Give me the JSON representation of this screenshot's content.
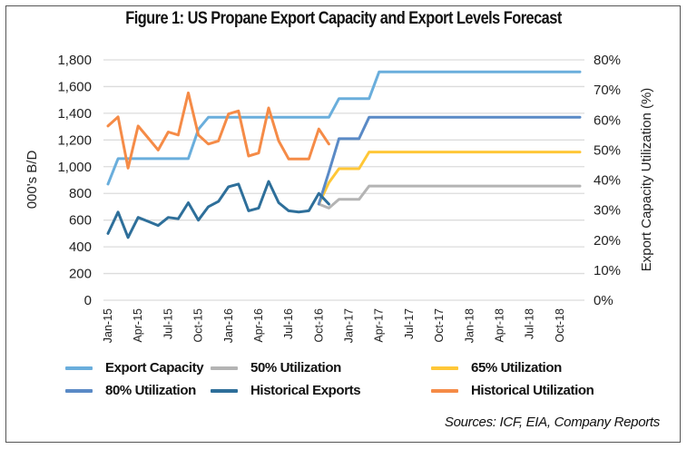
{
  "chart_data": {
    "type": "line",
    "title": "Figure 1: US Propane Export Capacity and Export Levels Forecast",
    "ylabel": "000's B/D",
    "y2label": "Export Capacity Utilization (%)",
    "ylim": [
      0,
      1800
    ],
    "y2lim": [
      0,
      0.8
    ],
    "yticks": [
      "0",
      "200",
      "400",
      "600",
      "800",
      "1,000",
      "1,200",
      "1,400",
      "1,600",
      "1,800"
    ],
    "y2ticks": [
      "0%",
      "10%",
      "20%",
      "30%",
      "40%",
      "50%",
      "60%",
      "70%",
      "80%"
    ],
    "grid": true,
    "legend_position": "bottom",
    "x": [
      "Jan-15",
      "Feb-15",
      "Mar-15",
      "Apr-15",
      "May-15",
      "Jun-15",
      "Jul-15",
      "Aug-15",
      "Sep-15",
      "Oct-15",
      "Nov-15",
      "Dec-15",
      "Jan-16",
      "Feb-16",
      "Mar-16",
      "Apr-16",
      "May-16",
      "Jun-16",
      "Jul-16",
      "Aug-16",
      "Sep-16",
      "Oct-16",
      "Nov-16",
      "Dec-16",
      "Jan-17",
      "Feb-17",
      "Mar-17",
      "Apr-17",
      "May-17",
      "Jun-17",
      "Jul-17",
      "Aug-17",
      "Sep-17",
      "Oct-17",
      "Nov-17",
      "Dec-17",
      "Jan-18",
      "Feb-18",
      "Mar-18",
      "Apr-18",
      "May-18",
      "Jun-18",
      "Jul-18",
      "Aug-18",
      "Sep-18",
      "Oct-18",
      "Nov-18",
      "Dec-18"
    ],
    "xtick_labels": [
      "Jan-15",
      "Apr-15",
      "Jul-15",
      "Oct-15",
      "Jan-16",
      "Apr-16",
      "Jul-16",
      "Oct-16",
      "Jan-17",
      "Apr-17",
      "Jul-17",
      "Oct-17",
      "Jan-18",
      "Apr-18",
      "Jul-18",
      "Oct-18"
    ],
    "series": [
      {
        "name": "Export Capacity",
        "axis": "left",
        "color": "#6aaedc",
        "values": [
          870,
          1060,
          1060,
          1060,
          1060,
          1060,
          1060,
          1060,
          1060,
          1280,
          1370,
          1370,
          1370,
          1370,
          1370,
          1370,
          1370,
          1370,
          1370,
          1370,
          1370,
          1370,
          1370,
          1510,
          1510,
          1510,
          1510,
          1710,
          1710,
          1710,
          1710,
          1710,
          1710,
          1710,
          1710,
          1710,
          1710,
          1710,
          1710,
          1710,
          1710,
          1710,
          1710,
          1710,
          1710,
          1710,
          1710,
          1710
        ]
      },
      {
        "name": "50% Utilization",
        "axis": "left",
        "color": "#b4b4b4",
        "values": [
          null,
          null,
          null,
          null,
          null,
          null,
          null,
          null,
          null,
          null,
          null,
          null,
          null,
          null,
          null,
          null,
          null,
          null,
          null,
          null,
          null,
          720,
          690,
          755,
          755,
          755,
          855,
          855,
          855,
          855,
          855,
          855,
          855,
          855,
          855,
          855,
          855,
          855,
          855,
          855,
          855,
          855,
          855,
          855,
          855,
          855,
          855,
          855
        ]
      },
      {
        "name": "65% Utilization",
        "axis": "left",
        "color": "#ffc737",
        "values": [
          null,
          null,
          null,
          null,
          null,
          null,
          null,
          null,
          null,
          null,
          null,
          null,
          null,
          null,
          null,
          null,
          null,
          null,
          null,
          null,
          null,
          720,
          880,
          985,
          985,
          985,
          1110,
          1110,
          1110,
          1110,
          1110,
          1110,
          1110,
          1110,
          1110,
          1110,
          1110,
          1110,
          1110,
          1110,
          1110,
          1110,
          1110,
          1110,
          1110,
          1110,
          1110,
          1110
        ]
      },
      {
        "name": "80% Utilization",
        "axis": "left",
        "color": "#5a8ac6",
        "values": [
          null,
          null,
          null,
          null,
          null,
          null,
          null,
          null,
          null,
          null,
          null,
          null,
          null,
          null,
          null,
          null,
          null,
          null,
          null,
          null,
          null,
          720,
          960,
          1210,
          1210,
          1210,
          1370,
          1370,
          1370,
          1370,
          1370,
          1370,
          1370,
          1370,
          1370,
          1370,
          1370,
          1370,
          1370,
          1370,
          1370,
          1370,
          1370,
          1370,
          1370,
          1370,
          1370,
          1370
        ]
      },
      {
        "name": "Historical Exports",
        "axis": "left",
        "color": "#2e6f9a",
        "values": [
          500,
          660,
          470,
          620,
          590,
          560,
          620,
          610,
          730,
          600,
          700,
          740,
          850,
          870,
          670,
          690,
          890,
          730,
          670,
          660,
          670,
          800,
          720
        ]
      },
      {
        "name": "Historical Utilization",
        "axis": "right",
        "color": "#f58b47",
        "values": [
          0.58,
          0.61,
          0.44,
          0.58,
          0.54,
          0.5,
          0.56,
          0.55,
          0.69,
          0.55,
          0.52,
          0.53,
          0.62,
          0.63,
          0.48,
          0.49,
          0.64,
          0.53,
          0.47,
          0.47,
          0.47,
          0.57,
          0.52
        ]
      }
    ]
  },
  "source": "Sources: ICF, EIA, Company Reports"
}
